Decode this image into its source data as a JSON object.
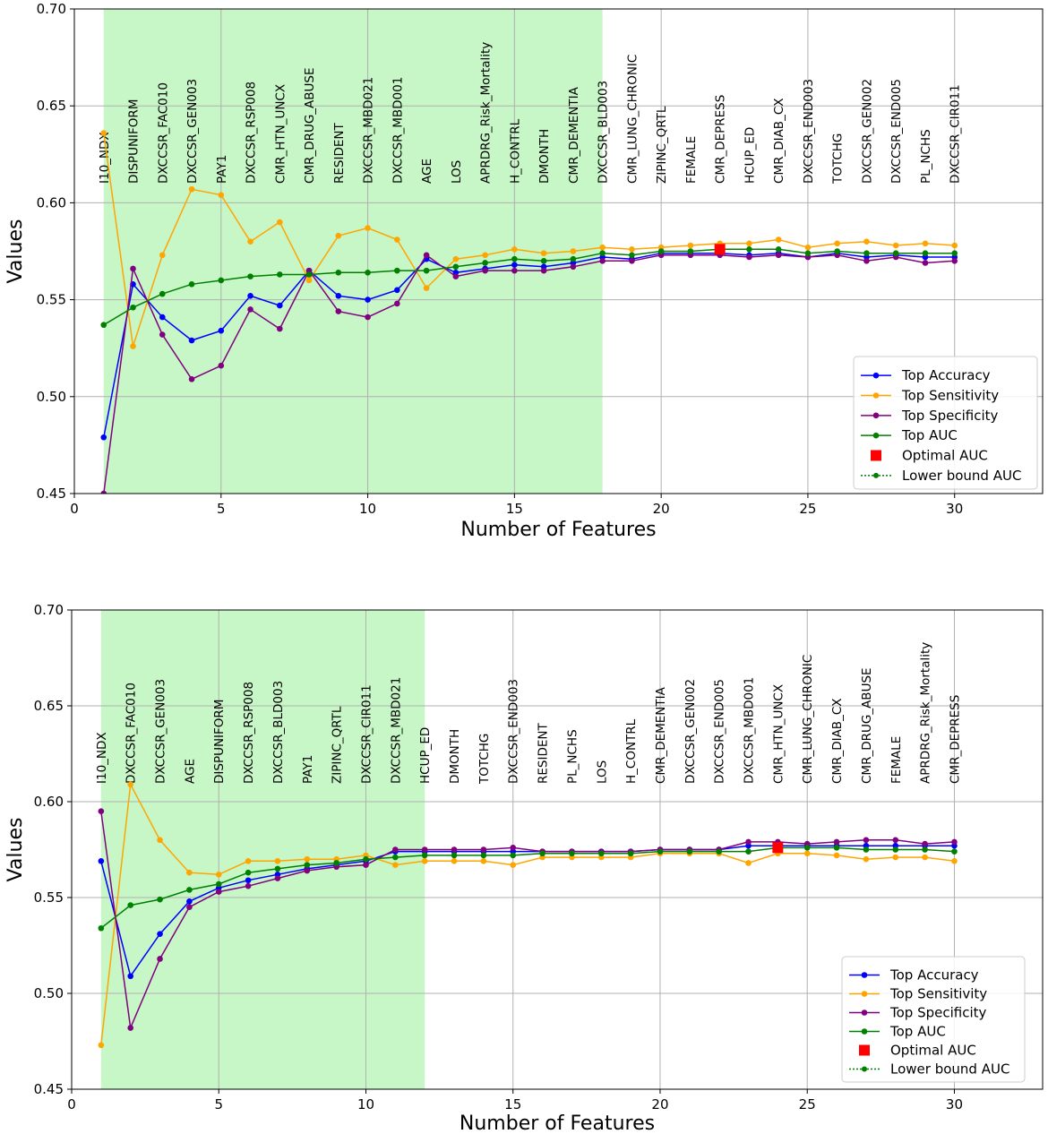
{
  "chart_data": [
    {
      "type": "line",
      "xlabel": "Number of Features",
      "ylabel": "Values",
      "xlim": [
        0,
        33
      ],
      "ylim": [
        0.45,
        0.7
      ],
      "x_ticks": [
        0,
        5,
        10,
        15,
        20,
        25,
        30
      ],
      "y_ticks": [
        "0.45",
        "0.50",
        "0.55",
        "0.60",
        "0.65",
        "0.70"
      ],
      "grid": true,
      "shaded_region": [
        1,
        18
      ],
      "x": [
        1,
        2,
        3,
        4,
        5,
        6,
        7,
        8,
        9,
        10,
        11,
        12,
        13,
        14,
        15,
        16,
        17,
        18,
        19,
        20,
        21,
        22,
        23,
        24,
        25,
        26,
        27,
        28,
        29,
        30
      ],
      "feature_labels": [
        "I10_NDX",
        "DISPUNIFORM",
        "DXCCSR_FAC010",
        "DXCCSR_GEN003",
        "PAY1",
        "DXCCSR_RSP008",
        "CMR_HTN_UNCX",
        "CMR_DRUG_ABUSE",
        "RESIDENT",
        "DXCCSR_MBD021",
        "DXCCSR_MBD001",
        "AGE",
        "LOS",
        "APRDRG_Risk_Mortality",
        "H_CONTRL",
        "DMONTH",
        "CMR_DEMENTIA",
        "DXCCSR_BLD003",
        "CMR_LUNG_CHRONIC",
        "ZIPINC_QRTL",
        "FEMALE",
        "CMR_DEPRESS",
        "HCUP_ED",
        "CMR_DIAB_CX",
        "DXCCSR_END003",
        "TOTCHG",
        "DXCCSR_GEN002",
        "DXCCSR_END005",
        "PL_NCHS",
        "DXCCSR_CIR011"
      ],
      "series": [
        {
          "name": "Top Accuracy",
          "color": "#0000ff",
          "values": [
            0.479,
            0.558,
            0.541,
            0.529,
            0.534,
            0.552,
            0.547,
            0.565,
            0.552,
            0.55,
            0.555,
            0.571,
            0.564,
            0.566,
            0.568,
            0.567,
            0.569,
            0.572,
            0.571,
            0.574,
            0.574,
            0.574,
            0.573,
            0.574,
            0.572,
            0.574,
            0.572,
            0.573,
            0.572,
            0.572
          ]
        },
        {
          "name": "Top Sensitivity",
          "color": "#ffa500",
          "values": [
            0.636,
            0.526,
            0.573,
            0.607,
            0.604,
            0.58,
            0.59,
            0.56,
            0.583,
            0.587,
            0.581,
            0.556,
            0.571,
            0.573,
            0.576,
            0.574,
            0.575,
            0.577,
            0.576,
            0.577,
            0.578,
            0.579,
            0.579,
            0.581,
            0.577,
            0.579,
            0.58,
            0.578,
            0.579,
            0.578
          ]
        },
        {
          "name": "Top Specificity",
          "color": "#800080",
          "values": [
            0.45,
            0.566,
            0.532,
            0.509,
            0.516,
            0.545,
            0.535,
            0.565,
            0.544,
            0.541,
            0.548,
            0.573,
            0.562,
            0.565,
            0.565,
            0.565,
            0.567,
            0.57,
            0.57,
            0.573,
            0.573,
            0.573,
            0.572,
            0.573,
            0.572,
            0.573,
            0.57,
            0.572,
            0.569,
            0.57
          ]
        },
        {
          "name": "Top AUC",
          "color": "#008000",
          "values": [
            0.537,
            0.546,
            0.553,
            0.558,
            0.56,
            0.562,
            0.563,
            0.563,
            0.564,
            0.564,
            0.565,
            0.565,
            0.567,
            0.569,
            0.571,
            0.57,
            0.571,
            0.574,
            0.573,
            0.575,
            0.575,
            0.576,
            0.576,
            0.576,
            0.574,
            0.575,
            0.574,
            0.574,
            0.574,
            0.574
          ]
        }
      ],
      "optimal_auc": {
        "name": "Optimal AUC",
        "x": 22,
        "y": 0.576,
        "color": "#ff0000"
      },
      "lower_bound": {
        "name": "Lower bound AUC",
        "color": "#008000"
      },
      "legend_position": "lower-right"
    },
    {
      "type": "line",
      "xlabel": "Number of Features",
      "ylabel": "Values",
      "xlim": [
        0,
        33
      ],
      "ylim": [
        0.45,
        0.7
      ],
      "x_ticks": [
        0,
        5,
        10,
        15,
        20,
        25,
        30
      ],
      "y_ticks": [
        "0.45",
        "0.50",
        "0.55",
        "0.60",
        "0.65",
        "0.70"
      ],
      "grid": true,
      "shaded_region": [
        1,
        12
      ],
      "x": [
        1,
        2,
        3,
        4,
        5,
        6,
        7,
        8,
        9,
        10,
        11,
        12,
        13,
        14,
        15,
        16,
        17,
        18,
        19,
        20,
        21,
        22,
        23,
        24,
        25,
        26,
        27,
        28,
        29,
        30
      ],
      "feature_labels": [
        "I10_NDX",
        "DXCCSR_FAC010",
        "DXCCSR_GEN003",
        "AGE",
        "DISPUNIFORM",
        "DXCCSR_RSP008",
        "DXCCSR_BLD003",
        "PAY1",
        "ZIPINC_QRTL",
        "DXCCSR_CIR011",
        "DXCCSR_MBD021",
        "HCUP_ED",
        "DMONTH",
        "TOTCHG",
        "DXCCSR_END003",
        "RESIDENT",
        "PL_NCHS",
        "LOS",
        "H_CONTRL",
        "CMR_DEMENTIA",
        "DXCCSR_GEN002",
        "DXCCSR_END005",
        "DXCCSR_MBD001",
        "CMR_HTN_UNCX",
        "CMR_LUNG_CHRONIC",
        "CMR_DIAB_CX",
        "CMR_DRUG_ABUSE",
        "FEMALE",
        "APRDRG_Risk_Mortality",
        "CMR_DEPRESS"
      ],
      "series": [
        {
          "name": "Top Accuracy",
          "color": "#0000ff",
          "values": [
            0.569,
            0.509,
            0.531,
            0.548,
            0.555,
            0.559,
            0.562,
            0.565,
            0.567,
            0.569,
            0.574,
            0.574,
            0.574,
            0.574,
            0.574,
            0.574,
            0.574,
            0.574,
            0.574,
            0.575,
            0.575,
            0.575,
            0.577,
            0.577,
            0.577,
            0.577,
            0.577,
            0.577,
            0.577,
            0.577
          ]
        },
        {
          "name": "Top Sensitivity",
          "color": "#ffa500",
          "values": [
            0.473,
            0.609,
            0.58,
            0.563,
            0.562,
            0.569,
            0.569,
            0.57,
            0.57,
            0.572,
            0.567,
            0.569,
            0.569,
            0.569,
            0.567,
            0.571,
            0.571,
            0.571,
            0.571,
            0.573,
            0.573,
            0.573,
            0.568,
            0.573,
            0.573,
            0.572,
            0.57,
            0.571,
            0.571,
            0.569
          ]
        },
        {
          "name": "Top Specificity",
          "color": "#800080",
          "values": [
            0.595,
            0.482,
            0.518,
            0.545,
            0.553,
            0.556,
            0.56,
            0.564,
            0.566,
            0.567,
            0.575,
            0.575,
            0.575,
            0.575,
            0.576,
            0.574,
            0.574,
            0.574,
            0.574,
            0.575,
            0.575,
            0.575,
            0.579,
            0.579,
            0.578,
            0.579,
            0.58,
            0.58,
            0.578,
            0.579
          ]
        },
        {
          "name": "Top AUC",
          "color": "#008000",
          "values": [
            0.534,
            0.546,
            0.549,
            0.554,
            0.557,
            0.563,
            0.565,
            0.567,
            0.568,
            0.57,
            0.571,
            0.572,
            0.572,
            0.572,
            0.572,
            0.573,
            0.573,
            0.573,
            0.573,
            0.574,
            0.574,
            0.574,
            0.574,
            0.576,
            0.576,
            0.576,
            0.575,
            0.575,
            0.575,
            0.574
          ]
        }
      ],
      "optimal_auc": {
        "name": "Optimal AUC",
        "x": 24,
        "y": 0.576,
        "color": "#ff0000"
      },
      "lower_bound": {
        "name": "Lower bound AUC",
        "color": "#008000"
      },
      "legend_position": "lower-right"
    }
  ]
}
